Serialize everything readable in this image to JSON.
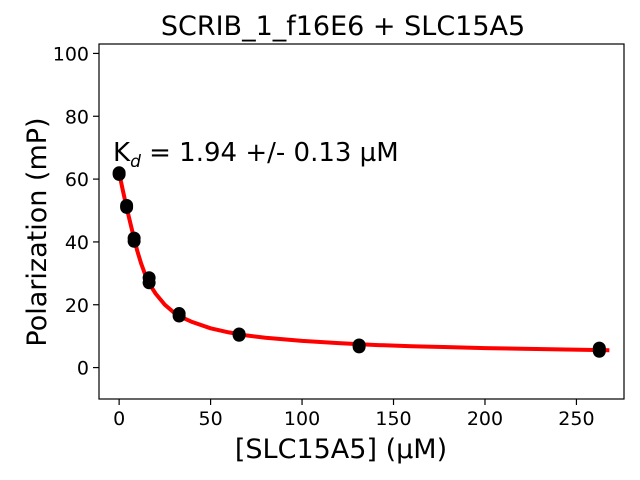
{
  "chart_data": {
    "type": "scatter",
    "title": "SCRIB_1_f16E6 + SLC15A5",
    "xlabel": "[SLC15A5] (µM)",
    "ylabel": "Polarization (mP)",
    "xlim": [
      -11,
      276
    ],
    "ylim": [
      -10,
      103
    ],
    "xticks": [
      0,
      50,
      100,
      150,
      200,
      250
    ],
    "yticks": [
      0,
      20,
      40,
      60,
      80,
      100
    ],
    "annotation": {
      "prefix": "K",
      "subscript": "d",
      "text": " = 1.94 +/- 0.13 µM"
    },
    "series": [
      {
        "kind": "points",
        "color": "#000000",
        "points": [
          [
            0,
            61.5
          ],
          [
            0,
            62.0
          ],
          [
            4.1,
            51.0
          ],
          [
            4.1,
            51.6
          ],
          [
            8.2,
            40.2
          ],
          [
            8.2,
            41.2
          ],
          [
            16.4,
            27.0
          ],
          [
            16.4,
            28.6
          ],
          [
            32.8,
            16.4
          ],
          [
            32.8,
            17.2
          ],
          [
            65.6,
            10.3
          ],
          [
            65.6,
            10.7
          ],
          [
            131.2,
            6.6
          ],
          [
            131.2,
            7.2
          ],
          [
            262.5,
            5.2
          ],
          [
            262.5,
            6.2
          ]
        ]
      },
      {
        "kind": "fit",
        "color": "#ff0000",
        "curve": [
          [
            0,
            62.0
          ],
          [
            2,
            56.5
          ],
          [
            4,
            51.2
          ],
          [
            6,
            46.3
          ],
          [
            8,
            41.5
          ],
          [
            10,
            37.0
          ],
          [
            12,
            33.2
          ],
          [
            14,
            30.0
          ],
          [
            16,
            27.5
          ],
          [
            18,
            25.3
          ],
          [
            20,
            23.5
          ],
          [
            25,
            20.0
          ],
          [
            30,
            17.5
          ],
          [
            35,
            15.8
          ],
          [
            40,
            14.5
          ],
          [
            50,
            12.5
          ],
          [
            60,
            11.2
          ],
          [
            70,
            10.2
          ],
          [
            80,
            9.5
          ],
          [
            100,
            8.5
          ],
          [
            120,
            7.8
          ],
          [
            140,
            7.2
          ],
          [
            160,
            6.8
          ],
          [
            180,
            6.5
          ],
          [
            200,
            6.2
          ],
          [
            220,
            6.0
          ],
          [
            240,
            5.8
          ],
          [
            260,
            5.6
          ],
          [
            268,
            5.5
          ]
        ]
      }
    ]
  }
}
